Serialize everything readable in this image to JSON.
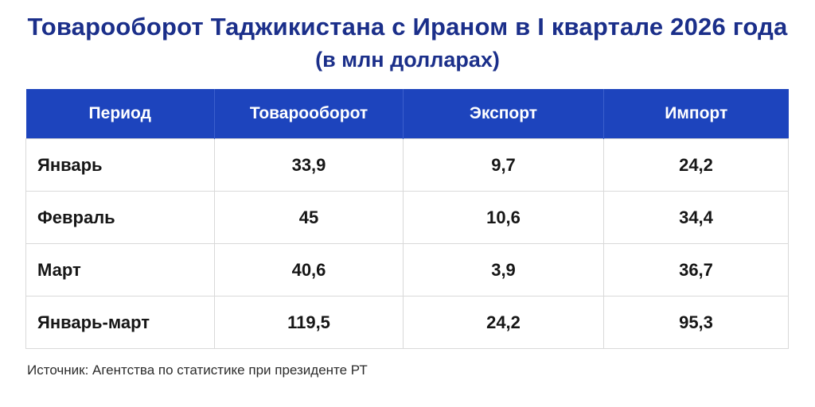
{
  "title": "Товарооборот Таджикистана с Ираном в I квартале 2026 года",
  "subtitle": "(в млн долларах)",
  "table": {
    "headers": [
      "Период",
      "Товарооборот",
      "Экспорт",
      "Импорт"
    ],
    "rows": [
      {
        "period": "Январь",
        "turnover": "33,9",
        "export": "9,7",
        "import": "24,2"
      },
      {
        "period": "Февраль",
        "turnover": "45",
        "export": "10,6",
        "import": "34,4"
      },
      {
        "period": "Март",
        "turnover": "40,6",
        "export": "3,9",
        "import": "36,7"
      },
      {
        "period": "Январь-март",
        "turnover": "119,5",
        "export": "24,2",
        "import": "95,3"
      }
    ]
  },
  "source": "Источник: Агентства по статистике при президенте РТ",
  "colors": {
    "title": "#1b2f8a",
    "header_bg": "#1d44bd",
    "header_text": "#ffffff"
  }
}
